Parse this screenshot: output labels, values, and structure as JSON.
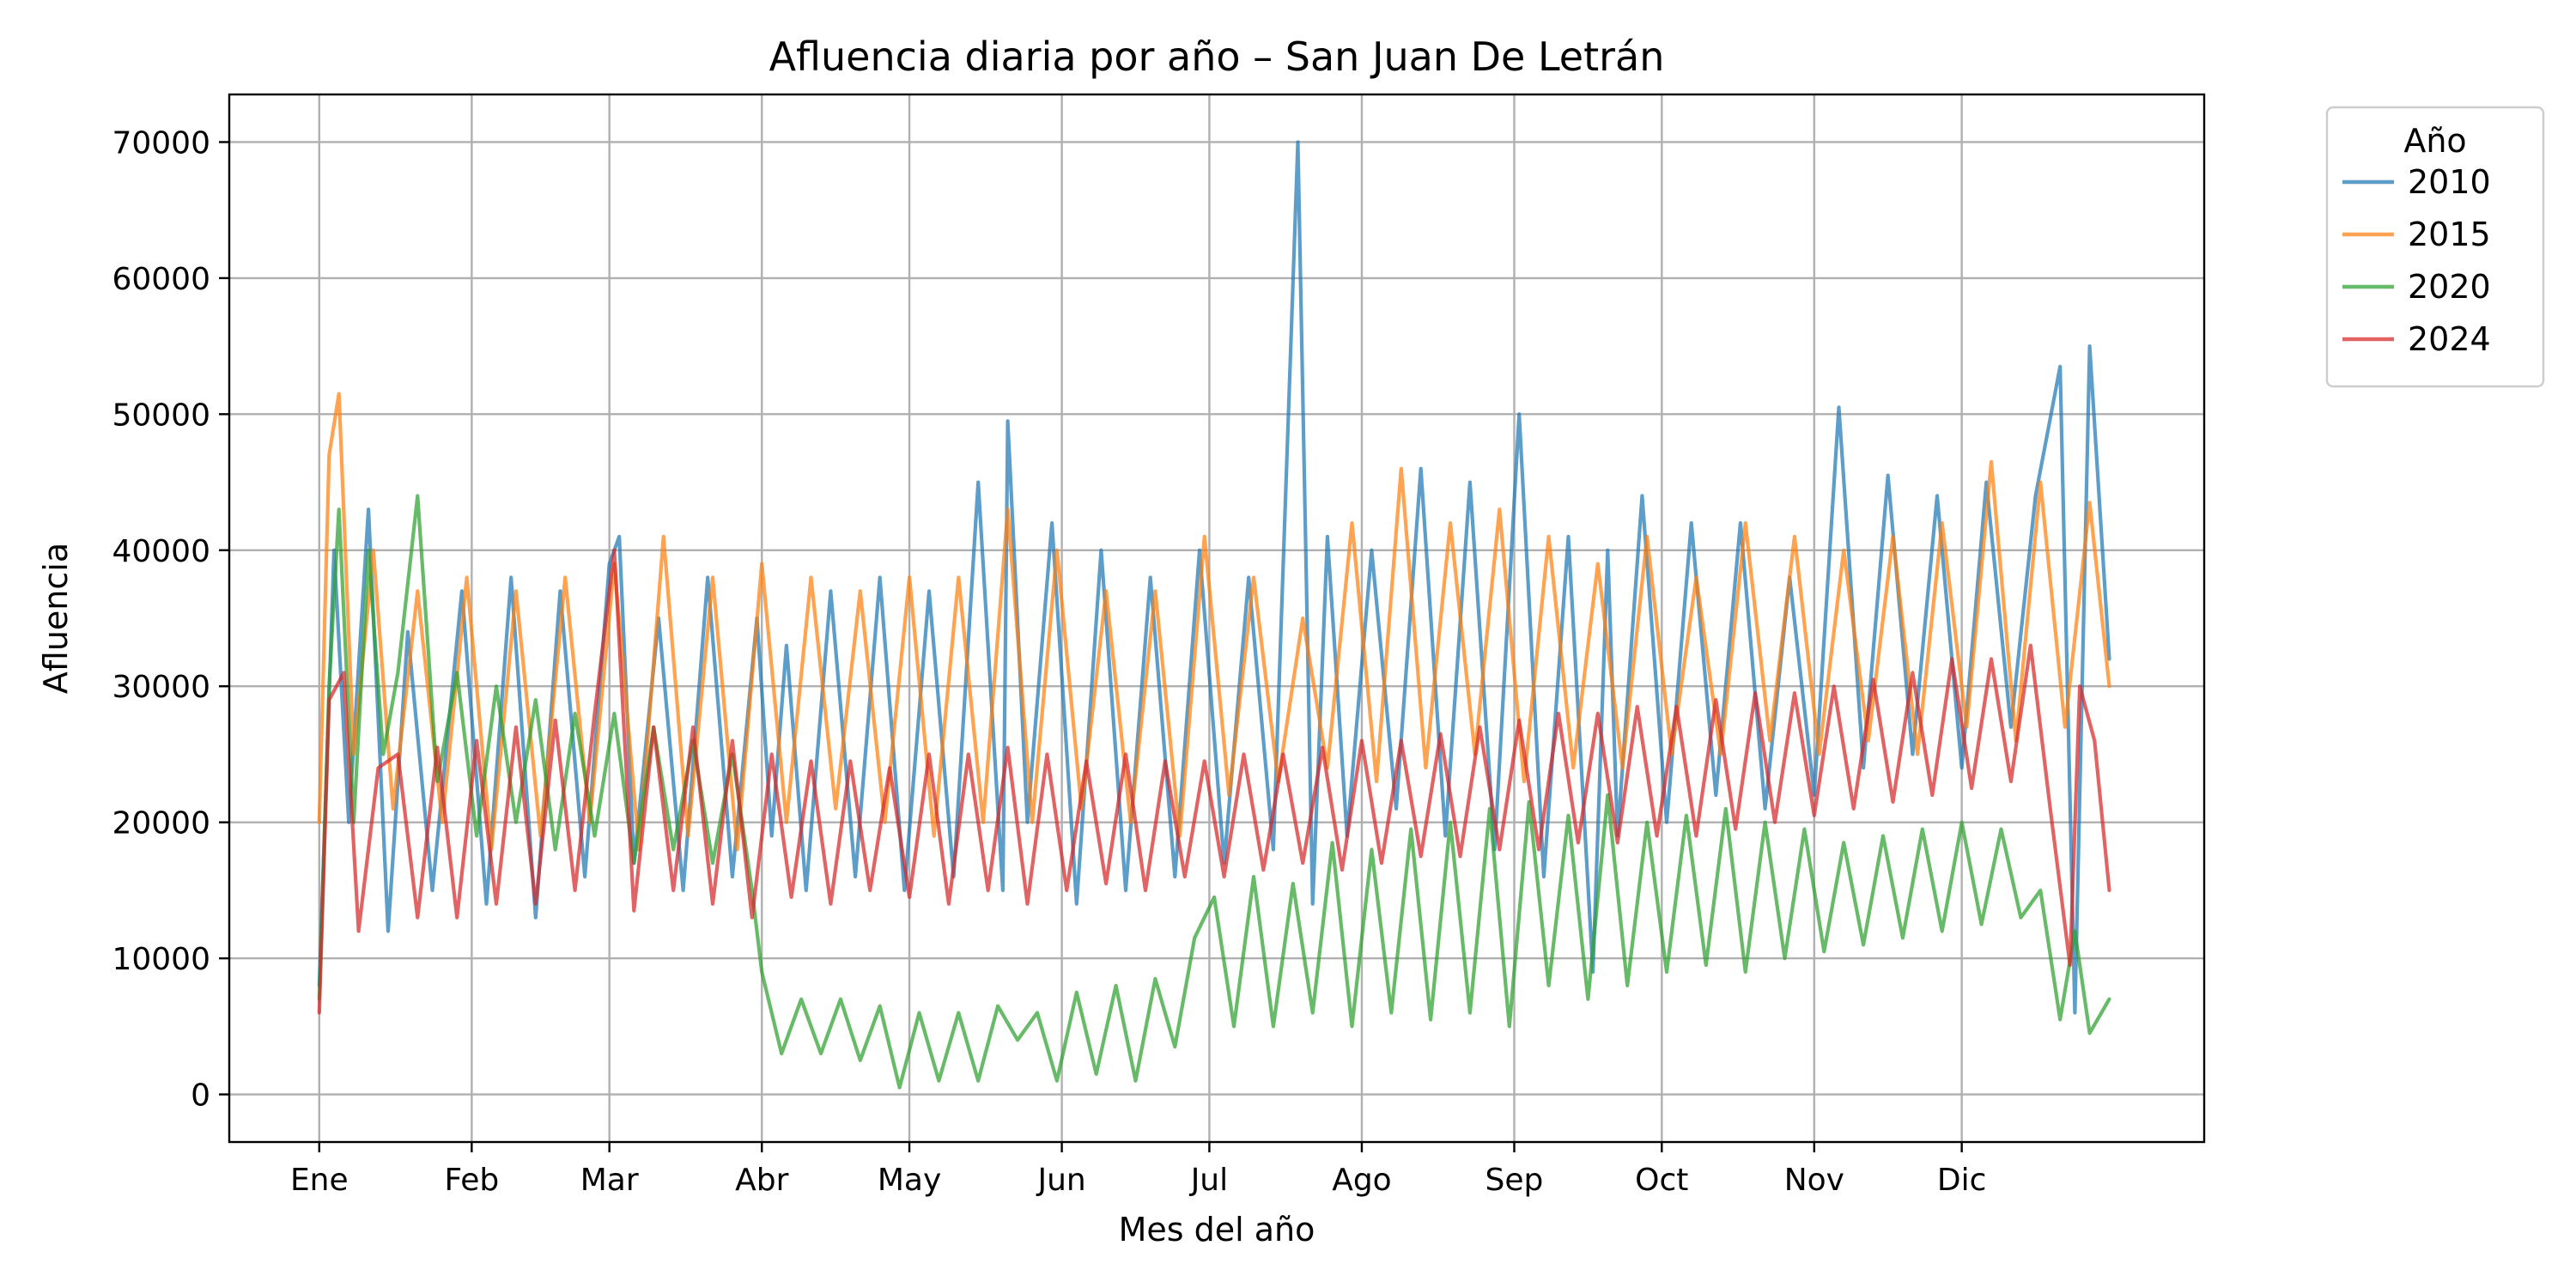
{
  "chart_data": {
    "type": "line",
    "title": "Afluencia diaria por año – San Juan De Letrán",
    "xlabel": "Mes del año",
    "ylabel": "Afluencia",
    "x_ticks": [
      {
        "day": 1,
        "label": "Ene"
      },
      {
        "day": 32,
        "label": "Feb"
      },
      {
        "day": 60,
        "label": "Mar"
      },
      {
        "day": 91,
        "label": "Abr"
      },
      {
        "day": 121,
        "label": "May"
      },
      {
        "day": 152,
        "label": "Jun"
      },
      {
        "day": 182,
        "label": "Jul"
      },
      {
        "day": 213,
        "label": "Ago"
      },
      {
        "day": 244,
        "label": "Sep"
      },
      {
        "day": 274,
        "label": "Oct"
      },
      {
        "day": 305,
        "label": "Nov"
      },
      {
        "day": 335,
        "label": "Dic"
      }
    ],
    "x_range": [
      -17.3,
      384.3
    ],
    "ylim": [
      -3500,
      73500
    ],
    "y_ticks": [
      0,
      10000,
      20000,
      30000,
      40000,
      50000,
      60000,
      70000
    ],
    "grid": true,
    "legend": {
      "title": "Año",
      "placement": "outside-top-right"
    },
    "series": [
      {
        "name": "2010",
        "color": "#1f77b4",
        "x": [
          1,
          4,
          7,
          11,
          15,
          19,
          24,
          30,
          35,
          40,
          45,
          50,
          55,
          60,
          62,
          65,
          70,
          75,
          80,
          85,
          90,
          93,
          96,
          100,
          105,
          110,
          115,
          120,
          125,
          130,
          135,
          140,
          141,
          145,
          150,
          155,
          160,
          165,
          170,
          175,
          180,
          185,
          190,
          195,
          200,
          203,
          206,
          210,
          215,
          220,
          225,
          230,
          235,
          240,
          245,
          250,
          255,
          260,
          263,
          265,
          270,
          275,
          280,
          285,
          290,
          295,
          300,
          305,
          310,
          315,
          320,
          325,
          330,
          335,
          340,
          345,
          350,
          355,
          358,
          361,
          365
        ],
        "y": [
          8000,
          40000,
          20000,
          43000,
          12000,
          34000,
          15000,
          37000,
          14000,
          38000,
          13000,
          37000,
          16000,
          39000,
          41000,
          17000,
          35000,
          15000,
          38000,
          16000,
          35000,
          19000,
          33000,
          15000,
          37000,
          16000,
          38000,
          15000,
          37000,
          16000,
          45000,
          15000,
          49500,
          20000,
          42000,
          14000,
          40000,
          15000,
          38000,
          16000,
          40000,
          17000,
          38000,
          18000,
          70000,
          14000,
          41000,
          19000,
          40000,
          21000,
          46000,
          19000,
          45000,
          18000,
          50000,
          16000,
          41000,
          9000,
          40000,
          19000,
          44000,
          20000,
          42000,
          22000,
          42000,
          21000,
          38000,
          22000,
          50500,
          24000,
          45500,
          25000,
          44000,
          24000,
          45000,
          27000,
          44000,
          53500,
          6000,
          55000,
          32000
        ]
      },
      {
        "name": "2015",
        "color": "#ff7f0e",
        "x": [
          1,
          3,
          5,
          8,
          12,
          16,
          21,
          26,
          31,
          36,
          41,
          46,
          51,
          56,
          61,
          66,
          71,
          76,
          81,
          86,
          91,
          96,
          101,
          106,
          111,
          116,
          121,
          126,
          131,
          136,
          141,
          146,
          151,
          156,
          161,
          166,
          171,
          176,
          181,
          186,
          191,
          196,
          201,
          206,
          211,
          216,
          221,
          226,
          231,
          236,
          241,
          246,
          251,
          256,
          261,
          266,
          271,
          276,
          281,
          286,
          291,
          296,
          301,
          306,
          311,
          316,
          321,
          326,
          331,
          336,
          341,
          346,
          351,
          356,
          361,
          365
        ],
        "y": [
          20000,
          47000,
          51500,
          25000,
          40000,
          21000,
          37000,
          20000,
          38000,
          18000,
          37000,
          19000,
          38000,
          20000,
          39000,
          18000,
          41000,
          19000,
          38000,
          18000,
          39000,
          20000,
          38000,
          21000,
          37000,
          20000,
          38000,
          19000,
          38000,
          20000,
          43000,
          20000,
          40000,
          21000,
          37000,
          20000,
          37000,
          19000,
          41000,
          22000,
          38000,
          23000,
          35000,
          24000,
          42000,
          23000,
          46000,
          24000,
          42000,
          25000,
          43000,
          23000,
          41000,
          24000,
          39000,
          24000,
          41000,
          25000,
          38000,
          25000,
          42000,
          26000,
          41000,
          25000,
          40000,
          26000,
          41000,
          25000,
          42000,
          27000,
          46500,
          26000,
          45000,
          27000,
          43500,
          30000
        ]
      },
      {
        "name": "2020",
        "color": "#2ca02c",
        "x": [
          1,
          3,
          5,
          8,
          11,
          14,
          17,
          21,
          25,
          29,
          33,
          37,
          41,
          45,
          49,
          53,
          57,
          61,
          65,
          69,
          73,
          77,
          81,
          85,
          89,
          91,
          95,
          99,
          103,
          107,
          111,
          115,
          119,
          123,
          127,
          131,
          135,
          139,
          143,
          147,
          151,
          155,
          159,
          163,
          167,
          171,
          175,
          179,
          183,
          187,
          191,
          195,
          199,
          203,
          207,
          211,
          215,
          219,
          223,
          227,
          231,
          235,
          239,
          243,
          247,
          251,
          255,
          259,
          263,
          267,
          271,
          275,
          279,
          283,
          287,
          291,
          295,
          299,
          303,
          307,
          311,
          315,
          319,
          323,
          327,
          331,
          335,
          339,
          343,
          347,
          351,
          355,
          358,
          361,
          365
        ],
        "y": [
          7000,
          30000,
          43000,
          20000,
          40000,
          25000,
          31000,
          44000,
          23000,
          31000,
          19000,
          30000,
          20000,
          29000,
          18000,
          28000,
          19000,
          28000,
          17000,
          27000,
          18000,
          26000,
          17000,
          25000,
          15000,
          9000,
          3000,
          7000,
          3000,
          7000,
          2500,
          6500,
          500,
          6000,
          1000,
          6000,
          1000,
          6500,
          4000,
          6000,
          1000,
          7500,
          1500,
          8000,
          1000,
          8500,
          3500,
          11500,
          14500,
          5000,
          16000,
          5000,
          15500,
          6000,
          18500,
          5000,
          18000,
          6000,
          19500,
          5500,
          20000,
          6000,
          21000,
          5000,
          21500,
          8000,
          20500,
          7000,
          22000,
          8000,
          20000,
          9000,
          20500,
          9500,
          21000,
          9000,
          20000,
          10000,
          19500,
          10500,
          18500,
          11000,
          19000,
          11500,
          19500,
          12000,
          20000,
          12500,
          19500,
          13000,
          15000,
          5500,
          12000,
          4500,
          7000
        ]
      },
      {
        "name": "2024",
        "color": "#d62728",
        "x": [
          1,
          3,
          6,
          9,
          13,
          17,
          21,
          25,
          29,
          33,
          37,
          41,
          45,
          49,
          53,
          57,
          61,
          65,
          69,
          73,
          77,
          81,
          85,
          89,
          93,
          97,
          101,
          105,
          109,
          113,
          117,
          121,
          125,
          129,
          133,
          137,
          141,
          145,
          149,
          153,
          157,
          161,
          165,
          169,
          173,
          177,
          181,
          185,
          189,
          193,
          197,
          201,
          205,
          209,
          213,
          217,
          221,
          225,
          229,
          233,
          237,
          241,
          245,
          249,
          253,
          257,
          261,
          265,
          269,
          273,
          277,
          281,
          285,
          289,
          293,
          297,
          301,
          305,
          309,
          313,
          317,
          321,
          325,
          329,
          333,
          337,
          341,
          345,
          349,
          353,
          357,
          359,
          362,
          365
        ],
        "y": [
          6000,
          29000,
          31000,
          12000,
          24000,
          25000,
          13000,
          25500,
          13000,
          26000,
          14000,
          27000,
          14000,
          27500,
          15000,
          28000,
          40000,
          13500,
          27000,
          15000,
          27000,
          14000,
          26000,
          13000,
          25000,
          14500,
          24500,
          14000,
          24500,
          15000,
          24000,
          14500,
          25000,
          14000,
          25000,
          15000,
          25500,
          14000,
          25000,
          15000,
          24500,
          15500,
          25000,
          15000,
          24500,
          16000,
          24500,
          16000,
          25000,
          16500,
          25000,
          17000,
          25500,
          16500,
          26000,
          17000,
          26000,
          17500,
          26500,
          17500,
          27000,
          18000,
          27500,
          18000,
          28000,
          18500,
          28000,
          18500,
          28500,
          19000,
          28500,
          19000,
          29000,
          19500,
          29500,
          20000,
          29500,
          20500,
          30000,
          21000,
          30500,
          21500,
          31000,
          22000,
          32000,
          22500,
          32000,
          23000,
          33000,
          21000,
          9500,
          30000,
          26000,
          15000
        ]
      }
    ]
  }
}
